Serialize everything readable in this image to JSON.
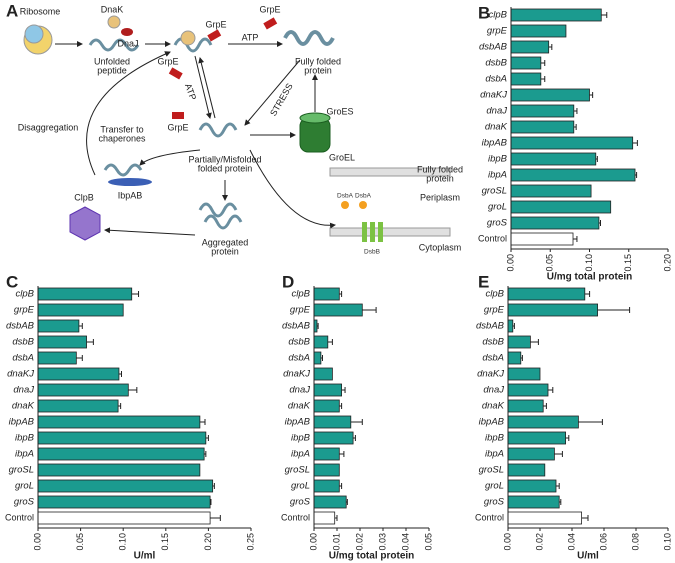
{
  "diagram": {
    "panel": "A",
    "labels": [
      "Ribosome",
      "DnaK",
      "DnaJ",
      [
        "Unfolded",
        "peptide"
      ],
      "GrpE",
      "GrpE",
      "ATP",
      [
        "Fully folded",
        "protein"
      ],
      "STRESS",
      "ATP",
      "GrpE",
      "GrpE",
      "GroES",
      "GroEL",
      "Disaggregation",
      [
        "Transfer to",
        "chaperones"
      ],
      [
        "Partially/Misfolded",
        "folded protein"
      ],
      "IbpAB",
      "ClpB",
      [
        "Aggregated",
        "protein"
      ],
      [
        "Fully folded",
        "protein"
      ],
      "Periplasm",
      "Cytoplasm",
      "DsbA",
      "DsbA",
      "DsbB"
    ]
  },
  "chart_data": [
    {
      "type": "bar",
      "orientation": "horizontal",
      "panel": "B",
      "categories": [
        "clpB",
        "grpE",
        "dsbAB",
        "dsbB",
        "dsbA",
        "dnaKJ",
        "dnaJ",
        "dnaK",
        "ibpAB",
        "ibpB",
        "ibpA",
        "groSL",
        "groL",
        "groS",
        "Control"
      ],
      "values": [
        0.115,
        0.07,
        0.048,
        0.038,
        0.038,
        0.1,
        0.08,
        0.08,
        0.155,
        0.108,
        0.158,
        0.102,
        0.127,
        0.112,
        0.079
      ],
      "errors": [
        0.007,
        null,
        0.004,
        0.005,
        0.005,
        0.004,
        0.004,
        0.003,
        0.006,
        0.002,
        0.002,
        null,
        null,
        0.002,
        0.005
      ],
      "colors": [
        "#1b9b8f",
        "#1b9b8f",
        "#1b9b8f",
        "#1b9b8f",
        "#1b9b8f",
        "#1b9b8f",
        "#1b9b8f",
        "#1b9b8f",
        "#1b9b8f",
        "#1b9b8f",
        "#1b9b8f",
        "#1b9b8f",
        "#1b9b8f",
        "#1b9b8f",
        "#ffffff"
      ],
      "xlabel": "U/mg total protein",
      "xlim": [
        0,
        0.2
      ],
      "xticks": [
        {
          "value": 0,
          "label": "0.00"
        },
        {
          "value": 0.05,
          "label": "0.05"
        },
        {
          "value": 0.1,
          "label": "0.10"
        },
        {
          "value": 0.15,
          "label": "0.15"
        },
        {
          "value": 0.2,
          "label": "0.20"
        }
      ]
    },
    {
      "type": "bar",
      "orientation": "horizontal",
      "panel": "C",
      "categories": [
        "clpB",
        "grpE",
        "dsbAB",
        "dsbB",
        "dsbA",
        "dnaKJ",
        "dnaJ",
        "dnaK",
        "ibpAB",
        "ibpB",
        "ibpA",
        "groSL",
        "groL",
        "groS",
        "Control"
      ],
      "values": [
        0.11,
        0.1,
        0.048,
        0.057,
        0.045,
        0.095,
        0.106,
        0.094,
        0.19,
        0.197,
        0.195,
        0.19,
        0.205,
        0.202,
        0.202
      ],
      "errors": [
        0.008,
        null,
        0.004,
        0.008,
        0.007,
        0.003,
        0.01,
        0.003,
        0.006,
        0.003,
        0.002,
        null,
        0.002,
        0.001,
        0.012
      ],
      "colors": [
        "#1b9b8f",
        "#1b9b8f",
        "#1b9b8f",
        "#1b9b8f",
        "#1b9b8f",
        "#1b9b8f",
        "#1b9b8f",
        "#1b9b8f",
        "#1b9b8f",
        "#1b9b8f",
        "#1b9b8f",
        "#1b9b8f",
        "#1b9b8f",
        "#1b9b8f",
        "#ffffff"
      ],
      "xlabel": "U/ml",
      "xlim": [
        0,
        0.25
      ],
      "xticks": [
        {
          "value": 0,
          "label": "0.00"
        },
        {
          "value": 0.05,
          "label": "0.05"
        },
        {
          "value": 0.1,
          "label": "0.10"
        },
        {
          "value": 0.15,
          "label": "0.15"
        },
        {
          "value": 0.2,
          "label": "0.20"
        },
        {
          "value": 0.25,
          "label": "0.25"
        }
      ]
    },
    {
      "type": "bar",
      "orientation": "horizontal",
      "panel": "D",
      "categories": [
        "clpB",
        "grpE",
        "dsbAB",
        "dsbB",
        "dsbA",
        "dnaKJ",
        "dnaJ",
        "dnaK",
        "ibpAB",
        "ibpB",
        "ibpA",
        "groSL",
        "groL",
        "groS",
        "Control"
      ],
      "values": [
        0.011,
        0.021,
        0.0013,
        0.006,
        0.003,
        0.008,
        0.012,
        0.011,
        0.016,
        0.017,
        0.011,
        0.011,
        0.011,
        0.014,
        0.009
      ],
      "errors": [
        0.001,
        0.006,
        0.0005,
        0.002,
        0.0007,
        null,
        0.0015,
        0.001,
        0.005,
        0.001,
        0.002,
        null,
        0.001,
        0.0005,
        0.001
      ],
      "colors": [
        "#1b9b8f",
        "#1b9b8f",
        "#1b9b8f",
        "#1b9b8f",
        "#1b9b8f",
        "#1b9b8f",
        "#1b9b8f",
        "#1b9b8f",
        "#1b9b8f",
        "#1b9b8f",
        "#1b9b8f",
        "#1b9b8f",
        "#1b9b8f",
        "#1b9b8f",
        "#ffffff"
      ],
      "xlabel": "U/mg total protein",
      "xlim": [
        0,
        0.05
      ],
      "xticks": [
        {
          "value": 0,
          "label": "0.00"
        },
        {
          "value": 0.01,
          "label": "0.01"
        },
        {
          "value": 0.02,
          "label": "0.02"
        },
        {
          "value": 0.03,
          "label": "0.03"
        },
        {
          "value": 0.04,
          "label": "0.04"
        },
        {
          "value": 0.05,
          "label": "0.05"
        }
      ]
    },
    {
      "type": "bar",
      "orientation": "horizontal",
      "panel": "E",
      "categories": [
        "clpB",
        "grpE",
        "dsbAB",
        "dsbB",
        "dsbA",
        "dnaKJ",
        "dnaJ",
        "dnaK",
        "ibpAB",
        "ibpB",
        "ibpA",
        "groSL",
        "groL",
        "groS",
        "Control"
      ],
      "values": [
        0.048,
        0.056,
        0.003,
        0.014,
        0.008,
        0.02,
        0.025,
        0.022,
        0.044,
        0.036,
        0.029,
        0.023,
        0.03,
        0.032,
        0.046
      ],
      "errors": [
        0.003,
        0.02,
        0.001,
        0.005,
        0.001,
        null,
        0.003,
        0.002,
        0.015,
        0.002,
        0.005,
        null,
        0.002,
        0.001,
        0.004
      ],
      "colors": [
        "#1b9b8f",
        "#1b9b8f",
        "#1b9b8f",
        "#1b9b8f",
        "#1b9b8f",
        "#1b9b8f",
        "#1b9b8f",
        "#1b9b8f",
        "#1b9b8f",
        "#1b9b8f",
        "#1b9b8f",
        "#1b9b8f",
        "#1b9b8f",
        "#1b9b8f",
        "#ffffff"
      ],
      "xlabel": "U/ml",
      "xlim": [
        0,
        0.1
      ],
      "xticks": [
        {
          "value": 0,
          "label": "0.00"
        },
        {
          "value": 0.02,
          "label": "0.02"
        },
        {
          "value": 0.04,
          "label": "0.04"
        },
        {
          "value": 0.06,
          "label": "0.06"
        },
        {
          "value": 0.08,
          "label": "0.08"
        },
        {
          "value": 0.1,
          "label": "0.10"
        }
      ]
    }
  ]
}
